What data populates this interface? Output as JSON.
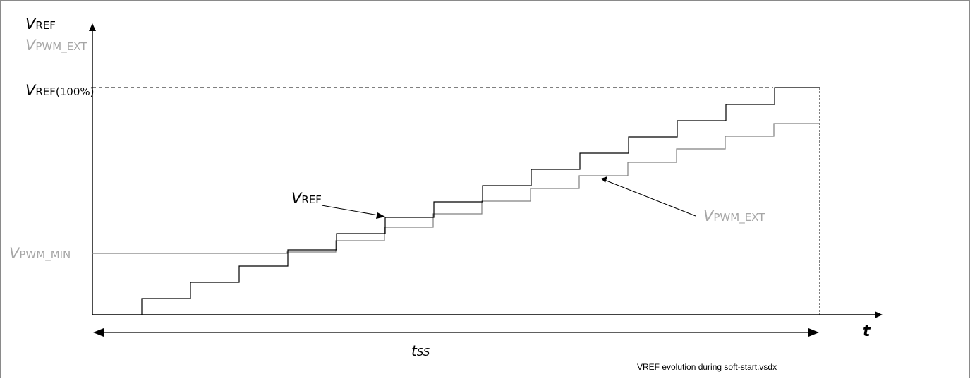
{
  "labels": {
    "y_axis_main": {
      "sym": "V",
      "sub": "REF"
    },
    "y_axis_secondary": {
      "sym": "V",
      "sub": "PWM_EXT"
    },
    "vref_100": {
      "sym": "V",
      "sub": "REF(100%)"
    },
    "vpwm_min": {
      "sym": "V",
      "sub": "PWM_MIN"
    },
    "vref_callout": {
      "sym": "V",
      "sub": "REF"
    },
    "vpwm_ext_callout": {
      "sym": "V",
      "sub": "PWM_EXT"
    },
    "x_axis": "t",
    "tss": {
      "sym": "t",
      "sub": "SS"
    },
    "filename": "VREF evolution during soft-start.vsdx"
  },
  "colors": {
    "vref_trace": "#000000",
    "vpwm_ext_trace": "#808080",
    "gray_label": "#a6a6a6",
    "axis": "#000000"
  }
}
